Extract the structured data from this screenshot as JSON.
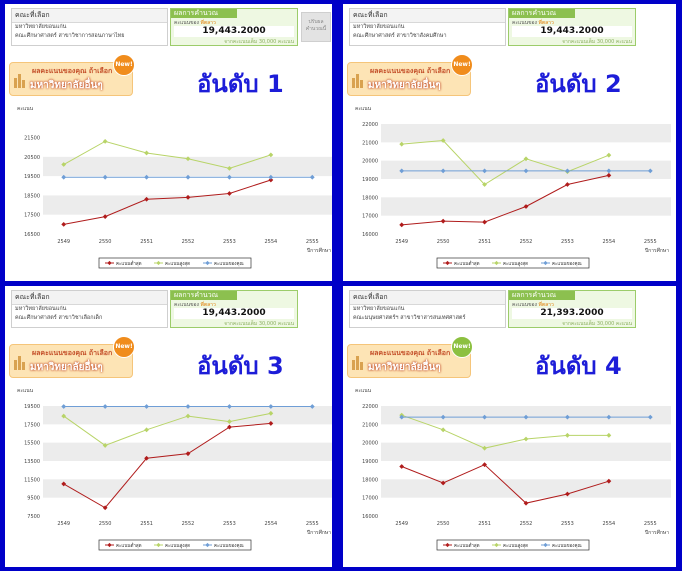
{
  "colors": {
    "frame": "#0000c8",
    "series_red": "#b01c1c",
    "series_green": "#b8d468",
    "series_blue": "#6f9ed6"
  },
  "panels": [
    {
      "faculty_header": "คณะที่เลือก",
      "faculty_line1": "มหาวิทยาลัยขอนแก่น",
      "faculty_line2": "คณะศึกษาศาสตร์ สาขาวิชาการสอนภาษาไทย",
      "result_header": "ผลการคำนวณ",
      "score_label": "คะแนนของ",
      "score_label_hl": "พี่ตลาว",
      "score": "19,443.2000",
      "full_score": "จากคะแนนเต็ม 30,000 คะแนน",
      "calc_button": "ปรับผล คำนวณนี้",
      "show_button": true,
      "banner_line1": "ผลคะแนนของคุณ ถ้าเลือก",
      "banner_line2": "มหาวิทยาลัยอื่นๆ",
      "new_badge": "New!",
      "badge_color": "#f08c1c",
      "rank_text": "อันดับ  1"
    },
    {
      "faculty_header": "คณะที่เลือก",
      "faculty_line1": "มหาวิทยาลัยขอนแก่น",
      "faculty_line2": "คณะศึกษาศาสตร์ สาขาวิชาสังคมศึกษา",
      "result_header": "ผลการคำนวณ",
      "score_label": "คะแนนของ",
      "score_label_hl": "พี่ตลาว",
      "score": "19,443.2000",
      "full_score": "จากคะแนนเต็ม 30,000 คะแนน",
      "calc_button": "",
      "show_button": false,
      "banner_line1": "ผลคะแนนของคุณ ถ้าเลือก",
      "banner_line2": "มหาวิทยาลัยอื่นๆ",
      "new_badge": "New!",
      "badge_color": "#f08c1c",
      "rank_text": "อันดับ  2"
    },
    {
      "faculty_header": "คณะที่เลือก",
      "faculty_line1": "มหาวิทยาลัยขอนแก่น",
      "faculty_line2": "คณะศึกษาศาสตร์ สาขาวิชาเลือกเด็ก",
      "result_header": "ผลการคำนวณ",
      "score_label": "คะแนนของ",
      "score_label_hl": "พี่ตลาว",
      "score": "19,443.2000",
      "full_score": "จากคะแนนเต็ม 30,000 คะแนน",
      "calc_button": "",
      "show_button": false,
      "banner_line1": "ผลคะแนนของคุณ ถ้าเลือก",
      "banner_line2": "มหาวิทยาลัยอื่นๆ",
      "new_badge": "New!",
      "badge_color": "#f08c1c",
      "rank_text": "อันดับ  3"
    },
    {
      "faculty_header": "คณะที่เลือก",
      "faculty_line1": "มหาวิทยาลัยขอนแก่น",
      "faculty_line2": "คณะมนุษยศาสตร์ฯ สาขาวิชาสารสนเทศศาสตร์",
      "result_header": "ผลการคำนวณ",
      "score_label": "คะแนนของ",
      "score_label_hl": "พี่ตลาว",
      "score": "21,393.2000",
      "full_score": "จากคะแนนเต็ม 30,000 คะแนน",
      "calc_button": "",
      "show_button": false,
      "banner_line1": "ผลคะแนนของคุณ ถ้าเลือก",
      "banner_line2": "มหาวิทยาลัยอื่นๆ",
      "new_badge": "New!",
      "badge_color": "#8cc040",
      "rank_text": "อันดับ  4"
    }
  ],
  "chart_data": [
    {
      "type": "line",
      "ylabel": "คะแนน",
      "xlabel": "ปีการศึกษา",
      "x": [
        "2549",
        "2550",
        "2551",
        "2552",
        "2553",
        "2554",
        "2555"
      ],
      "yticks": [
        "16500",
        "17500",
        "18500",
        "19500",
        "20500",
        "21500"
      ],
      "ylim": [
        16500,
        22200
      ],
      "series": [
        {
          "name": "คะแนนต่ำสุด",
          "color": "#b01c1c",
          "values": [
            17000,
            17400,
            18300,
            18400,
            18600,
            19300,
            null
          ]
        },
        {
          "name": "คะแนนสูงสุด",
          "color": "#b8d468",
          "values": [
            20100,
            21300,
            20700,
            20400,
            19900,
            20600,
            null
          ]
        },
        {
          "name": "คะแนนของคุณ",
          "color": "#6f9ed6",
          "values": [
            19443.2,
            19443.2,
            19443.2,
            19443.2,
            19443.2,
            19443.2,
            19443.2
          ]
        }
      ]
    },
    {
      "type": "line",
      "ylabel": "คะแนน",
      "xlabel": "ปีการศึกษา",
      "x": [
        "2549",
        "2550",
        "2551",
        "2552",
        "2553",
        "2554",
        "2555"
      ],
      "yticks": [
        "16000",
        "17000",
        "18000",
        "19000",
        "20000",
        "21000",
        "22000"
      ],
      "ylim": [
        16000,
        22000
      ],
      "series": [
        {
          "name": "คะแนนต่ำสุด",
          "color": "#b01c1c",
          "values": [
            16500,
            16700,
            16650,
            17500,
            18700,
            19200,
            null
          ]
        },
        {
          "name": "คะแนนสูงสุด",
          "color": "#b8d468",
          "values": [
            20900,
            21100,
            18700,
            20100,
            19400,
            20300,
            null
          ]
        },
        {
          "name": "คะแนนของคุณ",
          "color": "#6f9ed6",
          "values": [
            19443.2,
            19443.2,
            19443.2,
            19443.2,
            19443.2,
            19443.2,
            19443.2
          ]
        }
      ]
    },
    {
      "type": "line",
      "ylabel": "คะแนน",
      "xlabel": "ปีการศึกษา",
      "x": [
        "2549",
        "2550",
        "2551",
        "2552",
        "2553",
        "2554",
        "2555"
      ],
      "yticks": [
        "7500",
        "9500",
        "11500",
        "13500",
        "15500",
        "17500",
        "19500"
      ],
      "ylim": [
        7500,
        19500
      ],
      "series": [
        {
          "name": "คะแนนต่ำสุด",
          "color": "#b01c1c",
          "values": [
            11000,
            8400,
            13800,
            14300,
            17200,
            17600,
            null
          ]
        },
        {
          "name": "คะแนนสูงสุด",
          "color": "#b8d468",
          "values": [
            18400,
            15200,
            16900,
            18400,
            17800,
            18700,
            null
          ]
        },
        {
          "name": "คะแนนของคุณ",
          "color": "#6f9ed6",
          "values": [
            19443.2,
            19443.2,
            19443.2,
            19443.2,
            19443.2,
            19443.2,
            19443.2
          ]
        }
      ]
    },
    {
      "type": "line",
      "ylabel": "คะแนน",
      "xlabel": "ปีการศึกษา",
      "x": [
        "2549",
        "2550",
        "2551",
        "2552",
        "2553",
        "2554",
        "2555"
      ],
      "yticks": [
        "16000",
        "17000",
        "18000",
        "19000",
        "20000",
        "21000",
        "22000"
      ],
      "ylim": [
        16000,
        22000
      ],
      "series": [
        {
          "name": "คะแนนต่ำสุด",
          "color": "#b01c1c",
          "values": [
            18700,
            17800,
            18800,
            16700,
            17200,
            17900,
            null
          ]
        },
        {
          "name": "คะแนนสูงสุด",
          "color": "#b8d468",
          "values": [
            21500,
            20700,
            19700,
            20200,
            20400,
            20400,
            null
          ]
        },
        {
          "name": "คะแนนของคุณ",
          "color": "#6f9ed6",
          "values": [
            21393.2,
            21393.2,
            21393.2,
            21393.2,
            21393.2,
            21393.2,
            21393.2
          ]
        }
      ]
    }
  ]
}
